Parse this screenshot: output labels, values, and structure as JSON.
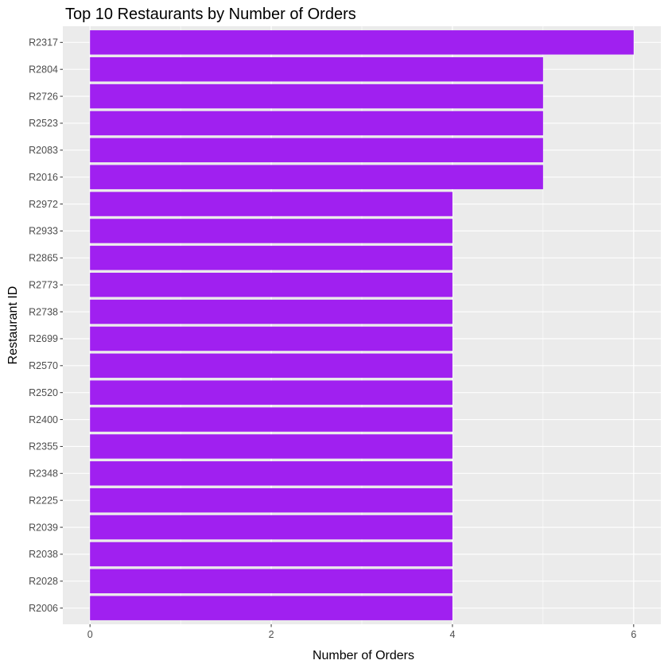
{
  "chart_data": {
    "type": "bar",
    "orientation": "horizontal",
    "title": "Top 10 Restaurants by Number of Orders",
    "xlabel": "Number of Orders",
    "ylabel": "Restaurant ID",
    "xlim": [
      -0.3,
      6.3
    ],
    "x_ticks": [
      0,
      2,
      4,
      6
    ],
    "grid": true,
    "legend": "none",
    "bar_color": "#A020F0",
    "panel_color": "#EBEBEB",
    "grid_color": "#FFFFFF",
    "categories": [
      "R2317",
      "R2804",
      "R2726",
      "R2523",
      "R2083",
      "R2016",
      "R2972",
      "R2933",
      "R2865",
      "R2773",
      "R2738",
      "R2699",
      "R2570",
      "R2520",
      "R2400",
      "R2355",
      "R2348",
      "R2225",
      "R2039",
      "R2038",
      "R2028",
      "R2006"
    ],
    "values": [
      6,
      5,
      5,
      5,
      5,
      5,
      4,
      4,
      4,
      4,
      4,
      4,
      4,
      4,
      4,
      4,
      4,
      4,
      4,
      4,
      4,
      4
    ]
  }
}
